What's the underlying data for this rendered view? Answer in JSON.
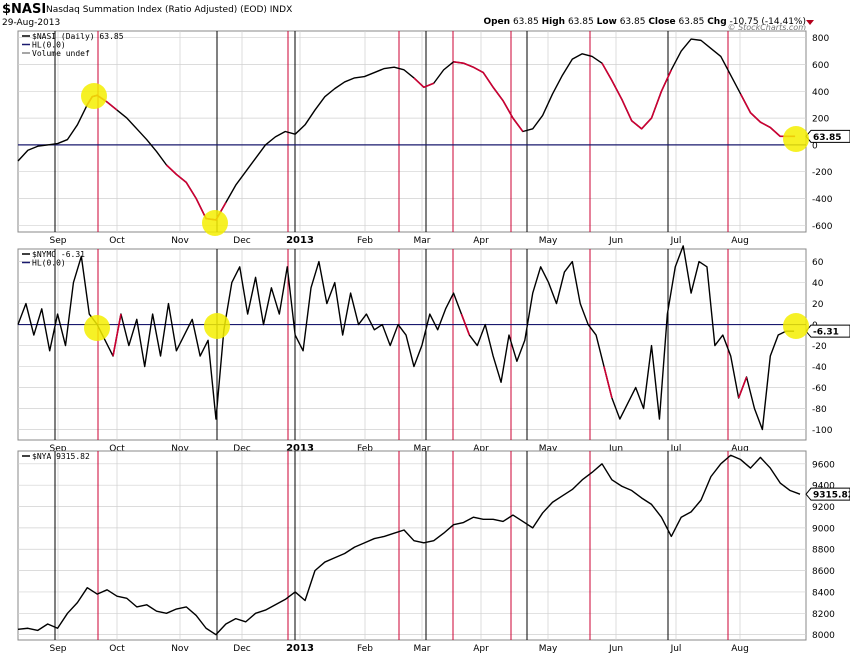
{
  "header": {
    "symbol": "$NASI",
    "description": "Nasdaq Summation Index (Ratio Adjusted) (EOD)",
    "exchange": "INDX",
    "date": "29-Aug-2013",
    "open_label": "Open",
    "open": "63.85",
    "high_label": "High",
    "high": "63.85",
    "low_label": "Low",
    "low": "63.85",
    "close_label": "Close",
    "close": "63.85",
    "chg_label": "Chg",
    "chg": "-10.75 (-14.41%)",
    "credit": "© StockCharts.com"
  },
  "colors": {
    "black_line": "#000000",
    "red_line": "#cc0033",
    "highlight": "#f5ee00",
    "zero_line": "#1a1a6e",
    "grid": "#d0d0d0"
  },
  "x_axis": {
    "labels": [
      "Sep",
      "Oct",
      "Nov",
      "Dec",
      "2013",
      "Feb",
      "Mar",
      "Apr",
      "May",
      "Jun",
      "Jul",
      "Aug"
    ]
  },
  "chart_data": [
    {
      "type": "line",
      "name": "NASI panel",
      "legend": [
        {
          "label": "$NASI (Daily) 63.85"
        },
        {
          "label": "HL(0.0)"
        },
        {
          "label": "Volume undef"
        }
      ],
      "last_value_label": "63.85",
      "ylim": [
        -650,
        850
      ],
      "yticks": [
        "-600",
        "-400",
        "-200",
        "0",
        "200",
        "400",
        "600",
        "800"
      ],
      "ytick_values": [
        -600,
        -400,
        -200,
        0,
        200,
        400,
        600,
        800
      ],
      "reference_line": 0,
      "x": [
        0,
        10,
        20,
        30,
        40,
        50,
        60,
        70,
        75,
        80,
        90,
        100,
        110,
        120,
        130,
        140,
        150,
        160,
        170,
        180,
        190,
        200,
        210,
        220,
        230,
        240,
        250,
        260,
        270,
        280,
        290,
        300,
        310,
        320,
        330,
        340,
        350,
        360,
        370,
        380,
        390,
        400,
        410,
        420,
        430,
        440,
        450,
        460,
        470,
        480,
        490,
        500,
        510,
        520,
        530,
        540,
        550,
        560,
        570,
        580,
        590,
        600,
        610,
        620,
        630,
        640,
        650,
        660,
        670,
        680,
        690,
        700,
        710,
        720,
        730,
        740,
        750,
        760,
        770,
        780,
        785
      ],
      "values": [
        -120,
        -40,
        -10,
        0,
        10,
        40,
        150,
        300,
        360,
        370,
        320,
        260,
        200,
        120,
        40,
        -50,
        -150,
        -220,
        -280,
        -400,
        -550,
        -560,
        -430,
        -300,
        -200,
        -100,
        0,
        60,
        100,
        80,
        150,
        260,
        360,
        420,
        470,
        500,
        510,
        540,
        570,
        580,
        560,
        500,
        430,
        460,
        560,
        620,
        610,
        580,
        540,
        430,
        330,
        200,
        100,
        120,
        220,
        380,
        520,
        640,
        680,
        660,
        610,
        480,
        340,
        180,
        120,
        200,
        400,
        560,
        700,
        790,
        780,
        720,
        660,
        520,
        380,
        240,
        170,
        130,
        63.85,
        63.85,
        63.85
      ],
      "red_segments": [
        [
          70,
          100
        ],
        [
          150,
          210
        ],
        [
          400,
          420
        ],
        [
          440,
          510
        ],
        [
          590,
          660
        ],
        [
          730,
          785
        ]
      ]
    },
    {
      "type": "line",
      "name": "NYMO panel",
      "legend": [
        {
          "label": "$NYMO -6.31"
        },
        {
          "label": "HL(0.0)"
        }
      ],
      "last_value_label": "-6.31",
      "ylim": [
        -110,
        72
      ],
      "yticks": [
        "-100",
        "-80",
        "-60",
        "-40",
        "-20",
        "0",
        "20",
        "40",
        "60"
      ],
      "ytick_values": [
        -100,
        -80,
        -60,
        -40,
        -20,
        0,
        20,
        40,
        60
      ],
      "reference_line": 0,
      "x": [
        0,
        8,
        16,
        24,
        32,
        40,
        48,
        56,
        64,
        72,
        80,
        88,
        96,
        104,
        112,
        120,
        128,
        136,
        144,
        152,
        160,
        168,
        176,
        184,
        192,
        200,
        208,
        216,
        224,
        232,
        240,
        248,
        256,
        264,
        272,
        280,
        288,
        296,
        304,
        312,
        320,
        328,
        336,
        344,
        352,
        360,
        368,
        376,
        384,
        392,
        400,
        408,
        416,
        424,
        432,
        440,
        448,
        456,
        464,
        472,
        480,
        488,
        496,
        504,
        512,
        520,
        528,
        536,
        544,
        552,
        560,
        568,
        576,
        584,
        592,
        600,
        608,
        616,
        624,
        632,
        640,
        648,
        656,
        664,
        672,
        680,
        688,
        696,
        704,
        712,
        720,
        728,
        736,
        744,
        752,
        760,
        768,
        776,
        784
      ],
      "values": [
        0,
        20,
        -10,
        15,
        -25,
        10,
        -20,
        40,
        65,
        10,
        0,
        -15,
        -30,
        10,
        -20,
        5,
        -40,
        10,
        -30,
        20,
        -25,
        -10,
        5,
        -30,
        -15,
        -90,
        -5,
        40,
        55,
        10,
        45,
        0,
        35,
        10,
        55,
        -10,
        -25,
        35,
        60,
        20,
        40,
        -10,
        30,
        0,
        10,
        -5,
        0,
        -20,
        0,
        -10,
        -40,
        -20,
        10,
        -5,
        15,
        30,
        10,
        -10,
        -20,
        0,
        -30,
        -55,
        -10,
        -35,
        -15,
        30,
        55,
        40,
        20,
        50,
        60,
        20,
        0,
        -10,
        -40,
        -70,
        -90,
        -75,
        -60,
        -80,
        -20,
        -90,
        10,
        55,
        75,
        30,
        60,
        55,
        -20,
        -10,
        -30,
        -70,
        -50,
        -80,
        -100,
        -30,
        -10,
        -6.31,
        -6.31
      ],
      "red_segments": [
        [
          96,
          104
        ],
        [
          216,
          222
        ],
        [
          290,
          296
        ],
        [
          398,
          406
        ],
        [
          448,
          456
        ],
        [
          508,
          518
        ],
        [
          588,
          600
        ],
        [
          724,
          736
        ]
      ]
    },
    {
      "type": "line",
      "name": "NYA panel",
      "legend": [
        {
          "label": "$NYA 9315.82"
        }
      ],
      "last_value_label": "9315.82",
      "ylim": [
        7950,
        9720
      ],
      "yticks": [
        "8000",
        "8200",
        "8400",
        "8600",
        "8800",
        "9000",
        "9200",
        "9400",
        "9600"
      ],
      "ytick_values": [
        8000,
        8200,
        8400,
        8600,
        8800,
        9000,
        9200,
        9400,
        9600
      ],
      "x": [
        0,
        10,
        20,
        30,
        40,
        50,
        60,
        70,
        80,
        90,
        100,
        110,
        120,
        130,
        140,
        150,
        160,
        170,
        180,
        190,
        200,
        210,
        220,
        230,
        240,
        250,
        260,
        270,
        280,
        290,
        300,
        310,
        320,
        330,
        340,
        350,
        360,
        370,
        380,
        390,
        400,
        410,
        420,
        430,
        440,
        450,
        460,
        470,
        480,
        490,
        500,
        510,
        520,
        530,
        540,
        550,
        560,
        570,
        580,
        590,
        600,
        610,
        620,
        630,
        640,
        650,
        660,
        670,
        680,
        690,
        700,
        710,
        720,
        730,
        740,
        750,
        760,
        770,
        780,
        790
      ],
      "values": [
        8050,
        8060,
        8040,
        8100,
        8060,
        8200,
        8300,
        8440,
        8380,
        8420,
        8360,
        8340,
        8260,
        8280,
        8220,
        8200,
        8240,
        8260,
        8180,
        8060,
        8000,
        8100,
        8150,
        8120,
        8200,
        8230,
        8280,
        8330,
        8400,
        8320,
        8600,
        8680,
        8720,
        8760,
        8820,
        8860,
        8900,
        8920,
        8950,
        8980,
        8880,
        8860,
        8880,
        8950,
        9030,
        9050,
        9100,
        9080,
        9080,
        9060,
        9120,
        9060,
        9000,
        9140,
        9240,
        9300,
        9360,
        9450,
        9520,
        9600,
        9450,
        9390,
        9350,
        9280,
        9220,
        9100,
        8920,
        9100,
        9150,
        9260,
        9480,
        9600,
        9680,
        9640,
        9560,
        9660,
        9560,
        9420,
        9350,
        9315.82
      ]
    }
  ]
}
